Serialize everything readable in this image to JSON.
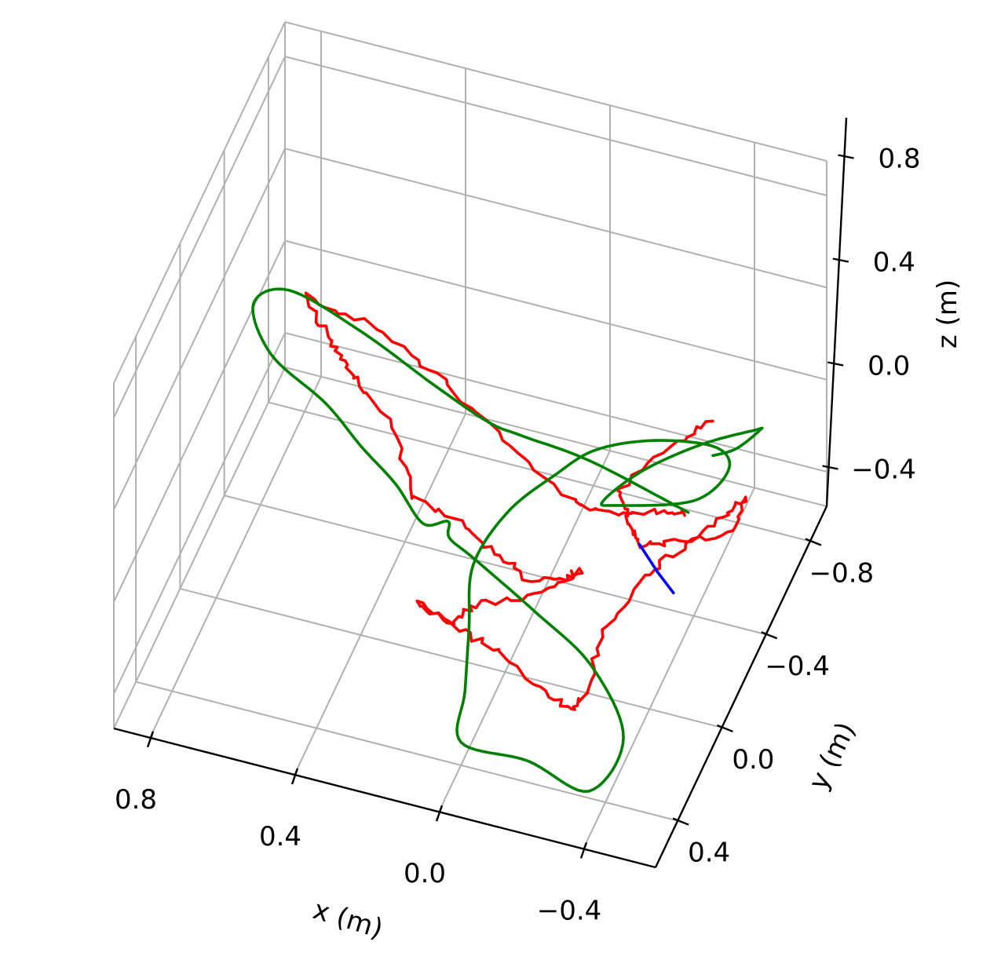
{
  "chart_data": {
    "type": "line3d",
    "xlabel": "x (m)",
    "ylabel": "y (m)",
    "zlabel": "z (m)",
    "xlim": [
      -0.6,
      0.9
    ],
    "ylim": [
      -0.95,
      0.6
    ],
    "zlim": [
      -0.55,
      0.95
    ],
    "x_ticks": [
      0.8,
      0.4,
      0.0,
      -0.4
    ],
    "x_tick_labels": [
      "0.8",
      "0.4",
      "0.0",
      "−0.4"
    ],
    "y_ticks": [
      -0.8,
      -0.4,
      0.0,
      0.4
    ],
    "y_tick_labels": [
      "−0.8",
      "−0.4",
      "0.0",
      "0.4"
    ],
    "z_ticks": [
      0.8,
      0.4,
      0.0,
      -0.4
    ],
    "z_tick_labels": [
      "0.8",
      "0.4",
      "0.0",
      "−0.4"
    ],
    "grid": true,
    "series": [
      {
        "color": "#ff0000",
        "style": "noisy",
        "points": [
          [
            -0.4,
            -0.35,
            -0.05
          ],
          [
            -0.3,
            -0.36,
            -0.1
          ],
          [
            -0.15,
            -0.4,
            -0.2
          ],
          [
            -0.05,
            -0.45,
            -0.25
          ],
          [
            0.1,
            -0.48,
            -0.15
          ],
          [
            0.25,
            -0.5,
            0.0
          ],
          [
            0.4,
            -0.5,
            0.15
          ],
          [
            0.55,
            -0.5,
            0.25
          ],
          [
            0.7,
            -0.5,
            0.3
          ],
          [
            0.65,
            -0.5,
            0.15
          ],
          [
            0.6,
            -0.5,
            0.05
          ],
          [
            0.55,
            -0.5,
            -0.05
          ],
          [
            0.45,
            -0.5,
            -0.2
          ],
          [
            0.4,
            -0.45,
            -0.4
          ],
          [
            0.25,
            -0.4,
            -0.4
          ],
          [
            0.1,
            -0.3,
            -0.4
          ],
          [
            0.0,
            -0.2,
            -0.35
          ],
          [
            -0.1,
            -0.2,
            -0.3
          ],
          [
            -0.15,
            -0.2,
            -0.25
          ],
          [
            -0.05,
            -0.1,
            -0.3
          ],
          [
            0.1,
            -0.05,
            -0.35
          ],
          [
            0.15,
            0.0,
            -0.4
          ],
          [
            0.25,
            0.0,
            -0.35
          ],
          [
            0.1,
            0.1,
            -0.3
          ],
          [
            -0.05,
            0.2,
            -0.25
          ],
          [
            -0.2,
            0.3,
            -0.25
          ],
          [
            -0.3,
            0.35,
            -0.25
          ],
          [
            -0.32,
            0.3,
            -0.2
          ],
          [
            -0.3,
            0.1,
            -0.15
          ],
          [
            -0.35,
            -0.1,
            -0.1
          ],
          [
            -0.4,
            -0.3,
            -0.15
          ],
          [
            -0.45,
            -0.5,
            -0.2
          ],
          [
            -0.5,
            -0.55,
            -0.15
          ],
          [
            -0.5,
            -0.45,
            -0.2
          ],
          [
            -0.35,
            -0.4,
            -0.25
          ],
          [
            -0.25,
            -0.4,
            -0.3
          ],
          [
            -0.2,
            -0.45,
            -0.28
          ],
          [
            -0.15,
            -0.55,
            -0.25
          ],
          [
            -0.25,
            -0.75,
            -0.2
          ],
          [
            -0.3,
            -0.9,
            -0.25
          ]
        ]
      },
      {
        "color": "#008000",
        "style": "smooth",
        "points": [
          [
            -0.4,
            -0.35,
            -0.05
          ],
          [
            -0.1,
            -0.45,
            -0.05
          ],
          [
            0.1,
            -0.48,
            -0.05
          ],
          [
            0.2,
            -0.5,
            -0.05
          ],
          [
            0.35,
            -0.5,
            0.05
          ],
          [
            0.55,
            -0.5,
            0.2
          ],
          [
            0.75,
            -0.5,
            0.3
          ],
          [
            0.85,
            -0.5,
            0.2
          ],
          [
            0.8,
            -0.5,
            0.0
          ],
          [
            0.65,
            -0.5,
            -0.15
          ],
          [
            0.55,
            -0.5,
            -0.3
          ],
          [
            0.45,
            -0.48,
            -0.4
          ],
          [
            0.35,
            -0.4,
            -0.45
          ],
          [
            0.25,
            -0.3,
            -0.3
          ],
          [
            0.2,
            -0.15,
            -0.2
          ],
          [
            0.1,
            -0.05,
            -0.15
          ],
          [
            -0.1,
            0.05,
            -0.2
          ],
          [
            -0.3,
            0.2,
            -0.2
          ],
          [
            -0.45,
            0.4,
            -0.25
          ],
          [
            -0.4,
            0.55,
            -0.35
          ],
          [
            -0.2,
            0.45,
            -0.4
          ],
          [
            0.0,
            0.4,
            -0.45
          ],
          [
            0.05,
            0.2,
            -0.45
          ],
          [
            0.1,
            0.0,
            -0.4
          ],
          [
            0.15,
            -0.2,
            -0.35
          ],
          [
            0.1,
            -0.35,
            -0.25
          ],
          [
            0.0,
            -0.45,
            -0.15
          ],
          [
            -0.1,
            -0.5,
            -0.05
          ],
          [
            -0.25,
            -0.55,
            0.0
          ],
          [
            -0.4,
            -0.6,
            -0.02
          ],
          [
            -0.45,
            -0.55,
            -0.05
          ],
          [
            -0.4,
            -0.4,
            -0.05
          ],
          [
            -0.2,
            -0.35,
            -0.1
          ],
          [
            -0.15,
            -0.4,
            -0.15
          ],
          [
            -0.2,
            -0.6,
            -0.2
          ],
          [
            -0.3,
            -0.8,
            -0.25
          ],
          [
            -0.4,
            -0.95,
            -0.3
          ],
          [
            -0.4,
            -1.0,
            -0.35
          ],
          [
            -0.35,
            -0.95,
            -0.4
          ],
          [
            -0.3,
            -0.9,
            -0.4
          ]
        ]
      },
      {
        "color": "#0000ff",
        "style": "segment",
        "points": [
          [
            -0.25,
            -0.4,
            -0.3
          ],
          [
            -0.3,
            -0.4,
            -0.4
          ],
          [
            -0.35,
            -0.38,
            -0.45
          ]
        ]
      }
    ]
  }
}
